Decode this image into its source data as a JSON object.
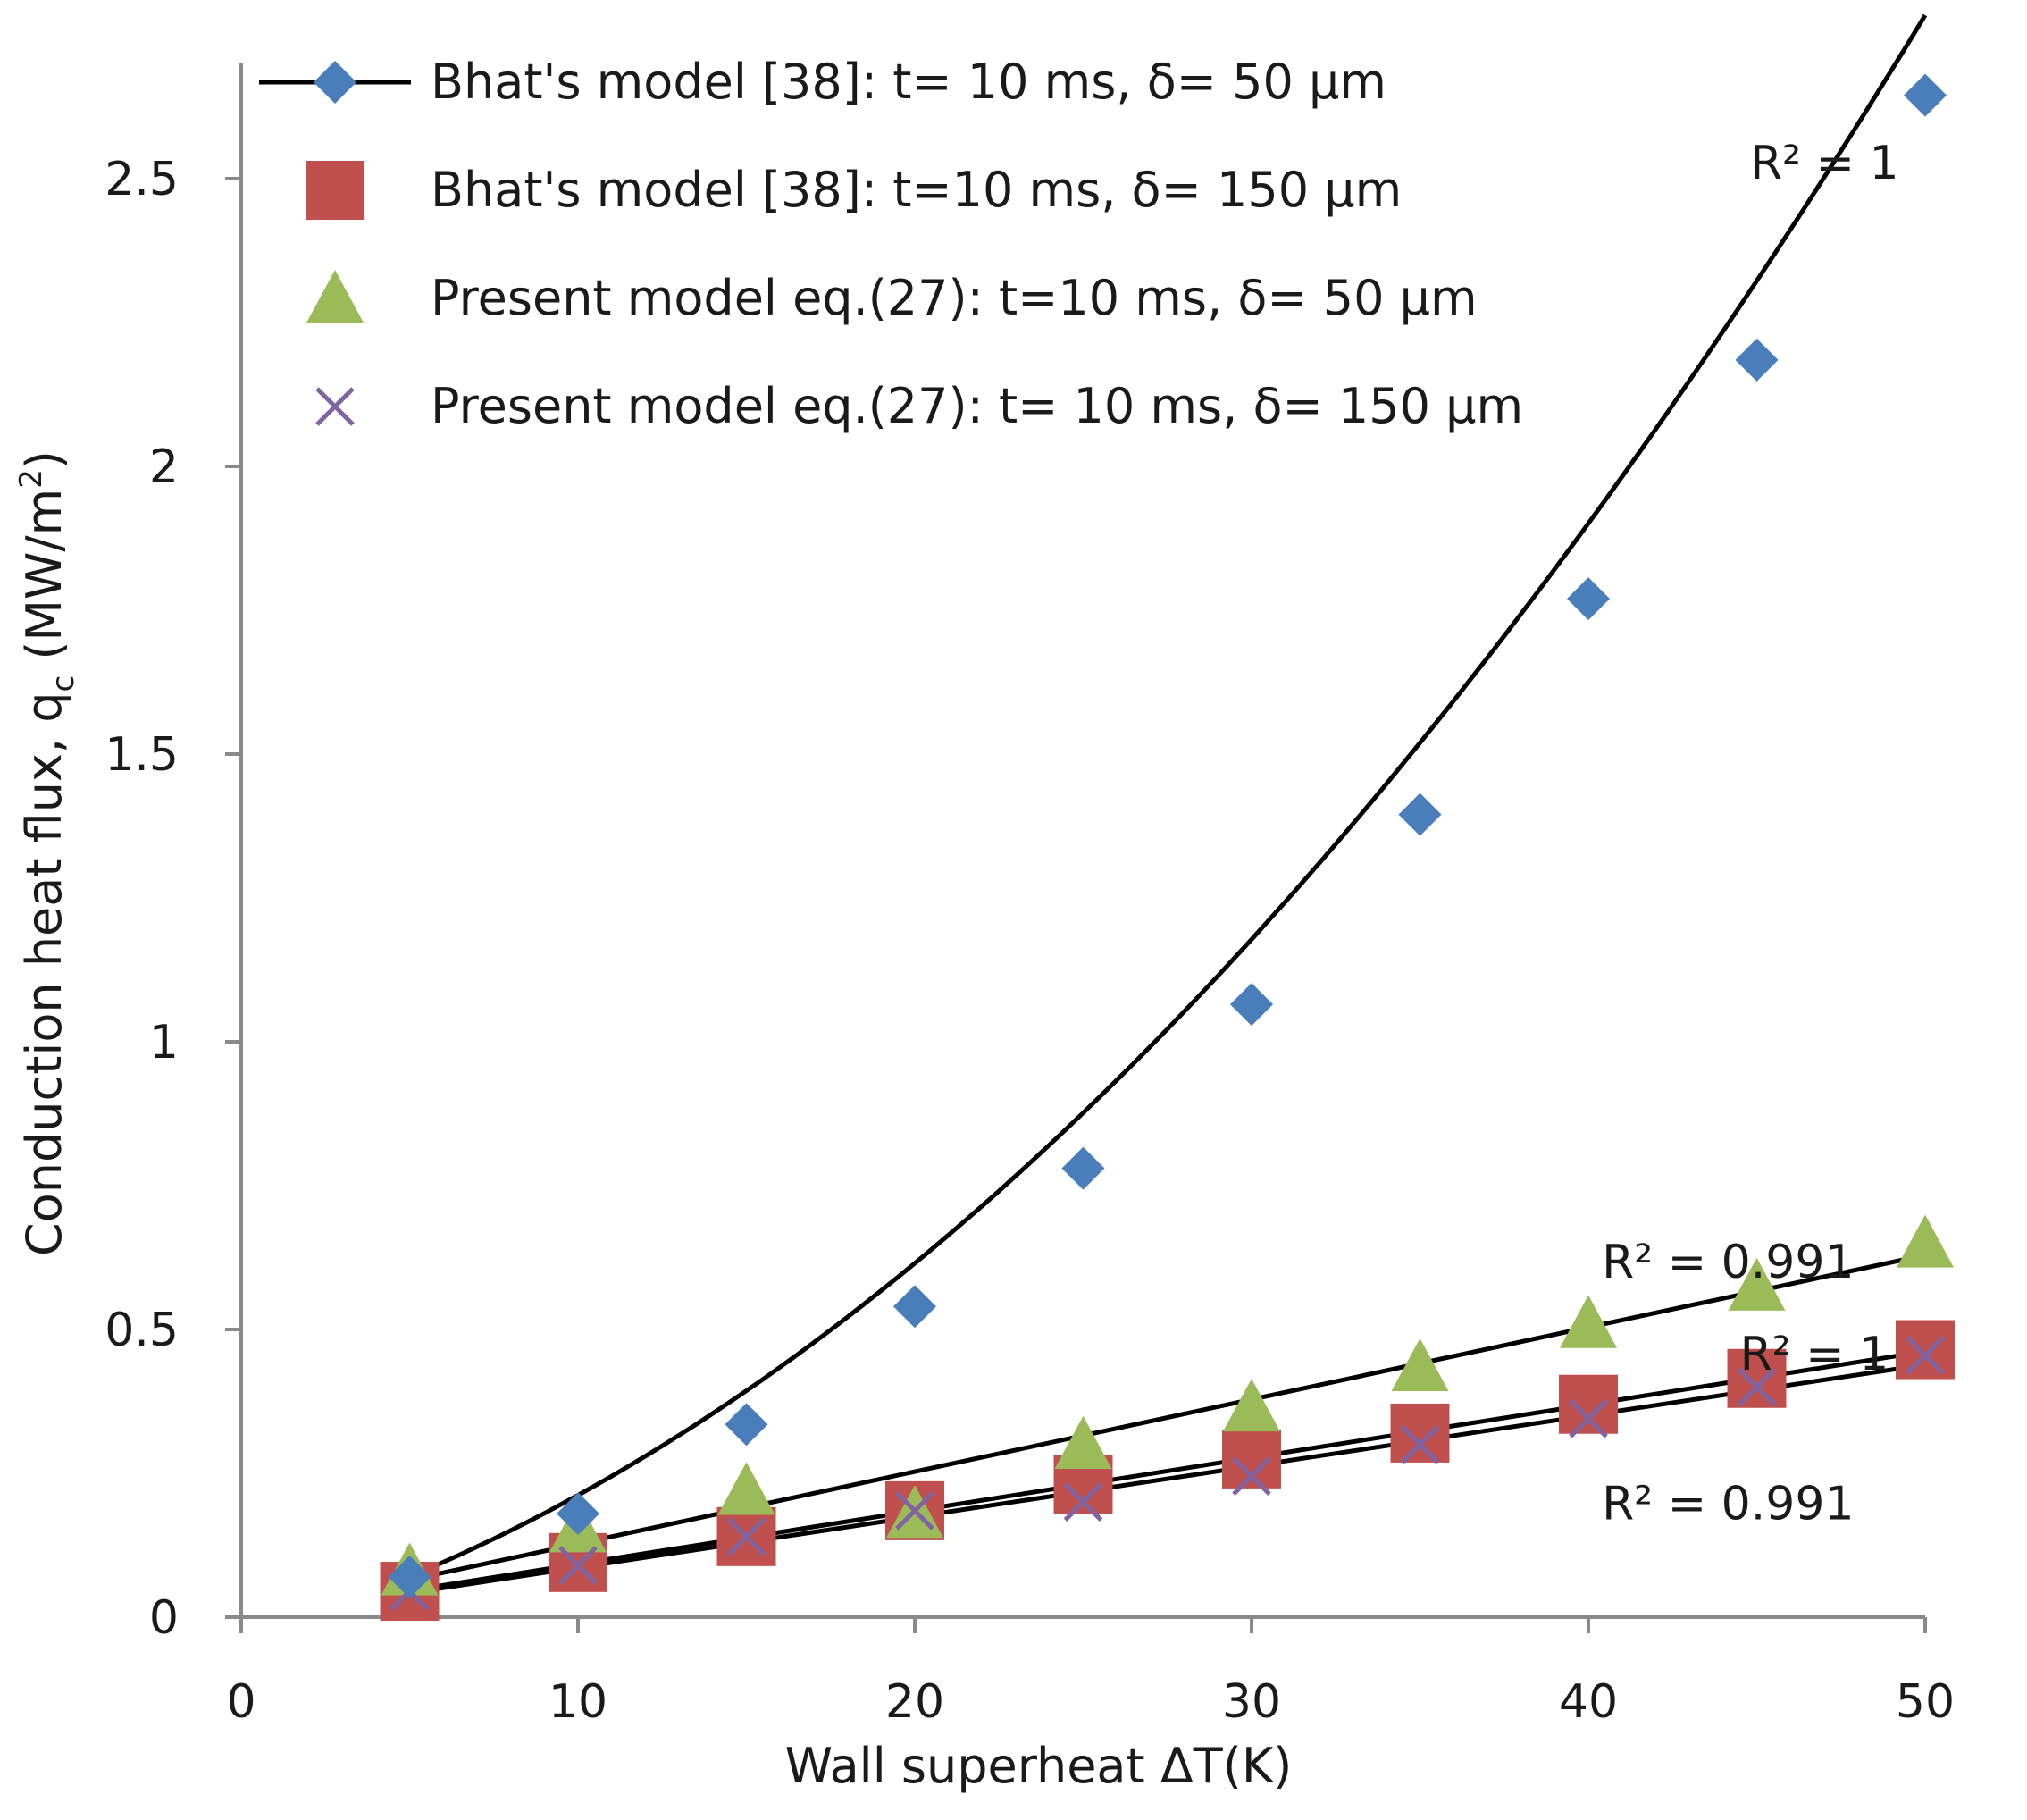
{
  "chart_data": {
    "type": "scatter",
    "title": "",
    "xlabel": "Wall superheat ΔT(K)",
    "ylabel": "Conduction heat flux, q",
    "ylabel_sub": "c",
    "ylabel_unit": " (MW/m",
    "ylabel_sup": "2",
    "ylabel_close": ")",
    "xlim": [
      0,
      50
    ],
    "ylim": [
      0,
      2.7
    ],
    "xticks": [
      "0",
      "10",
      "20",
      "30",
      "40",
      "50"
    ],
    "yticks": [
      "0",
      "0.5",
      "1",
      "1.5",
      "2",
      "2.5"
    ],
    "x": [
      5,
      10,
      15,
      20,
      25,
      30,
      35,
      40,
      45,
      50
    ],
    "series": [
      {
        "name": "Bhat's model [38]: t= 10 ms, δ= 50 µm",
        "marker": "diamond",
        "color": "#4a7ebb",
        "line_in_legend": true,
        "values": [
          0.07,
          0.18,
          0.335,
          0.54,
          0.78,
          1.065,
          1.395,
          1.77,
          2.185,
          2.645
        ]
      },
      {
        "name": "Bhat's model [38]: t=10 ms, δ= 150 µm",
        "marker": "square",
        "color": "#c0504d",
        "line_in_legend": false,
        "values": [
          0.045,
          0.095,
          0.14,
          0.185,
          0.23,
          0.275,
          0.32,
          0.37,
          0.415,
          0.465
        ]
      },
      {
        "name": "Present model eq.(27): t=10 ms, δ= 50 µm",
        "marker": "triangle",
        "color": "#9bbb59",
        "line_in_legend": false,
        "values": [
          0.08,
          0.155,
          0.22,
          0.18,
          0.3,
          0.365,
          0.435,
          0.51,
          0.575,
          0.65
        ]
      },
      {
        "name": "Present model eq.(27): t= 10 ms, δ= 150 µm",
        "marker": "x",
        "color": "#8064a2",
        "line_in_legend": false,
        "values": [
          0.045,
          0.09,
          0.14,
          0.185,
          0.2,
          0.245,
          0.3,
          0.345,
          0.4,
          0.455
        ]
      }
    ],
    "trendlines": [
      {
        "series": 0,
        "kind": "poly2",
        "x": [
          5,
          50
        ],
        "coeffs": [
          0.0008,
          0.0163,
          -0.031
        ],
        "r2_label": "R² = 1"
      },
      {
        "series": 2,
        "kind": "linear",
        "x": [
          5,
          50
        ],
        "coeffs": [
          0.0125,
          0.0
        ]
      },
      {
        "series": 1,
        "kind": "linear",
        "x": [
          5,
          50
        ],
        "coeffs": [
          0.0093,
          0.0
        ]
      },
      {
        "series": 3,
        "kind": "linear",
        "x": [
          5,
          50
        ],
        "coeffs": [
          0.0088,
          0.0
        ]
      }
    ],
    "r2_labels": [
      {
        "text": "R² = 1",
        "at": [
          44.8,
          2.5
        ]
      },
      {
        "text": "R² = 0.991",
        "at": [
          40.4,
          0.59
        ]
      },
      {
        "text": "R² = 1",
        "at": [
          44.5,
          0.43
        ]
      },
      {
        "text": "R² = 0.991",
        "at": [
          40.4,
          0.17
        ]
      }
    ],
    "legend_position": "top-left",
    "grid": false
  }
}
